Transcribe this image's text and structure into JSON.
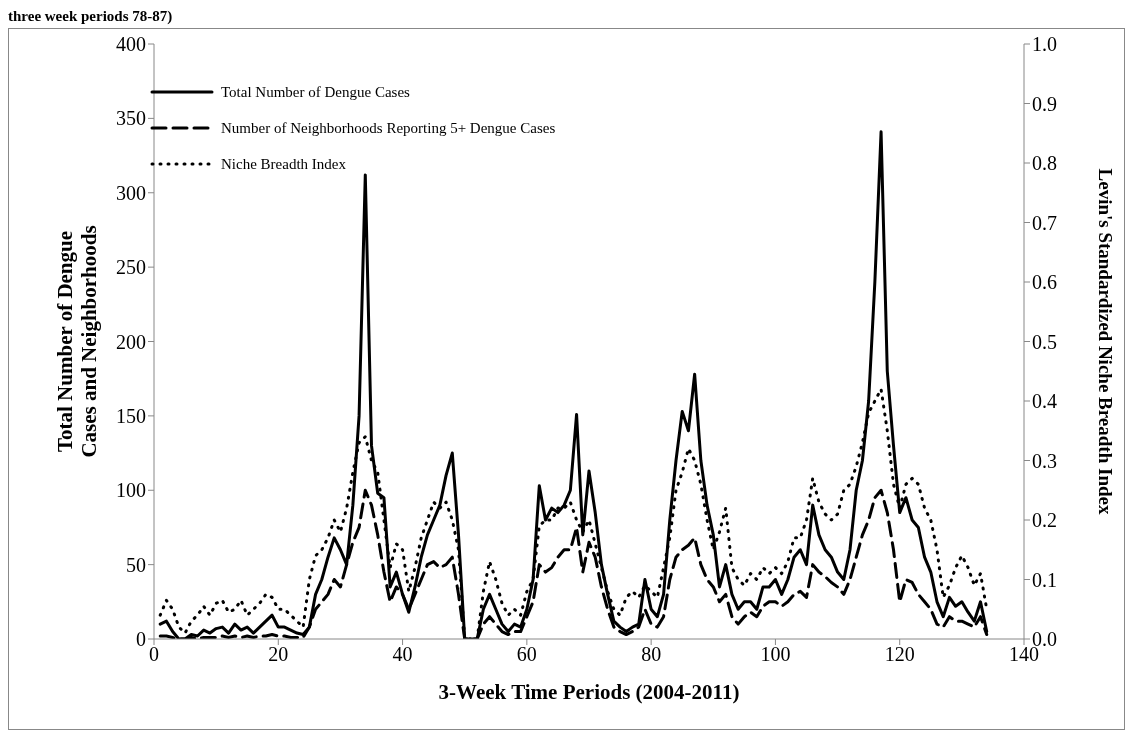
{
  "chart_data": {
    "type": "line",
    "annotations": [
      "three week periods 78-87)"
    ],
    "xlabel": "3-Week Time Periods (2004-2011)",
    "ylabel": "Total Number of Dengue Cases and Neighborhoods",
    "y2label": "Levin's Standardized Niche Breadth Index",
    "x": [
      1,
      2,
      3,
      4,
      5,
      6,
      7,
      8,
      9,
      10,
      11,
      12,
      13,
      14,
      15,
      16,
      17,
      18,
      19,
      20,
      21,
      22,
      23,
      24,
      25,
      26,
      27,
      28,
      29,
      30,
      31,
      32,
      33,
      34,
      35,
      36,
      37,
      38,
      39,
      40,
      41,
      42,
      43,
      44,
      45,
      46,
      47,
      48,
      49,
      50,
      51,
      52,
      53,
      54,
      55,
      56,
      57,
      58,
      59,
      60,
      61,
      62,
      63,
      64,
      65,
      66,
      67,
      68,
      69,
      70,
      71,
      72,
      73,
      74,
      75,
      76,
      77,
      78,
      79,
      80,
      81,
      82,
      83,
      84,
      85,
      86,
      87,
      88,
      89,
      90,
      91,
      92,
      93,
      94,
      95,
      96,
      97,
      98,
      99,
      100,
      101,
      102,
      103,
      104,
      105,
      106,
      107,
      108,
      109,
      110,
      111,
      112,
      113,
      114,
      115,
      116,
      117,
      118,
      119,
      120,
      121,
      122,
      123,
      124,
      125,
      126,
      127,
      128,
      129,
      130,
      131,
      132,
      133,
      134
    ],
    "series": [
      {
        "name": "Total Number of Dengue Cases",
        "color": "#000000",
        "line_style": "solid",
        "values": [
          10,
          12,
          5,
          0,
          0,
          3,
          2,
          6,
          4,
          7,
          8,
          4,
          10,
          6,
          8,
          4,
          8,
          12,
          16,
          8,
          8,
          6,
          4,
          3,
          8,
          30,
          40,
          55,
          68,
          60,
          50,
          90,
          150,
          312,
          130,
          98,
          95,
          35,
          45,
          30,
          18,
          35,
          55,
          70,
          80,
          90,
          110,
          125,
          70,
          0,
          0,
          0,
          20,
          30,
          20,
          10,
          5,
          10,
          8,
          20,
          40,
          103,
          80,
          88,
          85,
          90,
          100,
          151,
          70,
          113,
          85,
          50,
          30,
          12,
          8,
          5,
          8,
          10,
          40,
          20,
          15,
          30,
          80,
          120,
          153,
          140,
          178,
          120,
          90,
          70,
          35,
          50,
          30,
          20,
          25,
          25,
          20,
          35,
          35,
          40,
          30,
          40,
          55,
          60,
          50,
          90,
          70,
          60,
          55,
          45,
          40,
          60,
          100,
          120,
          160,
          240,
          341,
          180,
          130,
          85,
          95,
          80,
          75,
          55,
          45,
          25,
          15,
          28,
          22,
          25,
          18,
          12,
          25,
          5
        ]
      },
      {
        "name": "Number of Neighborhoods Reporting 5+ Dengue Cases",
        "color": "#000000",
        "line_style": "dashed",
        "values": [
          2,
          2,
          1,
          0,
          0,
          1,
          0,
          1,
          1,
          1,
          2,
          1,
          2,
          1,
          2,
          1,
          2,
          2,
          3,
          2,
          2,
          1,
          1,
          1,
          8,
          20,
          25,
          30,
          40,
          35,
          50,
          65,
          75,
          100,
          90,
          70,
          45,
          25,
          35,
          30,
          20,
          30,
          40,
          50,
          52,
          48,
          50,
          55,
          30,
          0,
          0,
          0,
          10,
          15,
          10,
          5,
          3,
          5,
          5,
          15,
          25,
          50,
          45,
          48,
          55,
          60,
          60,
          75,
          45,
          65,
          55,
          35,
          20,
          8,
          5,
          3,
          5,
          8,
          20,
          10,
          8,
          15,
          40,
          55,
          60,
          63,
          68,
          50,
          40,
          35,
          25,
          30,
          15,
          10,
          15,
          18,
          15,
          22,
          25,
          25,
          22,
          25,
          30,
          32,
          28,
          50,
          45,
          42,
          38,
          35,
          30,
          40,
          55,
          70,
          80,
          95,
          100,
          85,
          60,
          25,
          40,
          38,
          30,
          25,
          20,
          10,
          8,
          15,
          12,
          12,
          10,
          8,
          15,
          3
        ]
      },
      {
        "name": "Niche Breadth Index",
        "color": "#000000",
        "line_style": "dotted",
        "axis": "y2",
        "values": [
          0.04,
          0.065,
          0.05,
          0.02,
          0.01,
          0.03,
          0.04,
          0.055,
          0.04,
          0.06,
          0.065,
          0.045,
          0.05,
          0.065,
          0.04,
          0.05,
          0.06,
          0.075,
          0.07,
          0.05,
          0.05,
          0.04,
          0.03,
          0.02,
          0.1,
          0.14,
          0.15,
          0.17,
          0.2,
          0.18,
          0.22,
          0.28,
          0.33,
          0.34,
          0.3,
          0.28,
          0.2,
          0.12,
          0.16,
          0.15,
          0.08,
          0.12,
          0.17,
          0.2,
          0.23,
          0.22,
          0.23,
          0.2,
          0.15,
          0,
          0,
          0,
          0.08,
          0.13,
          0.1,
          0.06,
          0.04,
          0.05,
          0.04,
          0.08,
          0.1,
          0.19,
          0.2,
          0.2,
          0.22,
          0.22,
          0.23,
          0.2,
          0.18,
          0.2,
          0.16,
          0.12,
          0.08,
          0.05,
          0.04,
          0.07,
          0.08,
          0.07,
          0.09,
          0.08,
          0.07,
          0.12,
          0.17,
          0.25,
          0.28,
          0.32,
          0.3,
          0.26,
          0.2,
          0.15,
          0.18,
          0.22,
          0.12,
          0.1,
          0.09,
          0.11,
          0.1,
          0.12,
          0.11,
          0.12,
          0.11,
          0.13,
          0.17,
          0.17,
          0.2,
          0.27,
          0.23,
          0.21,
          0.2,
          0.21,
          0.25,
          0.26,
          0.29,
          0.33,
          0.38,
          0.4,
          0.42,
          0.35,
          0.26,
          0.22,
          0.26,
          0.27,
          0.26,
          0.22,
          0.2,
          0.15,
          0.07,
          0.09,
          0.12,
          0.14,
          0.12,
          0.09,
          0.11,
          0.05
        ]
      }
    ],
    "xlim": [
      0,
      140
    ],
    "xticks": [
      0,
      20,
      40,
      60,
      80,
      100,
      120,
      140
    ],
    "ylim": [
      0,
      400
    ],
    "yticks": [
      0,
      50,
      100,
      150,
      200,
      250,
      300,
      350,
      400
    ],
    "y2lim": [
      0,
      1
    ],
    "y2ticks": [
      {
        "value": 0,
        "label": "0.0"
      },
      {
        "value": 0.1,
        "label": "0.1"
      },
      {
        "value": 0.2,
        "label": "0.2"
      },
      {
        "value": 0.3,
        "label": "0.3"
      },
      {
        "value": 0.4,
        "label": "0.4"
      },
      {
        "value": 0.5,
        "label": "0.5"
      },
      {
        "value": 0.6,
        "label": "0.6"
      },
      {
        "value": 0.7,
        "label": "0.7"
      },
      {
        "value": 0.8,
        "label": "0.8"
      },
      {
        "value": 0.9,
        "label": "0.9"
      },
      {
        "value": 1,
        "label": "1.0"
      }
    ],
    "grid": false,
    "legend": "top left",
    "marker": "none"
  }
}
